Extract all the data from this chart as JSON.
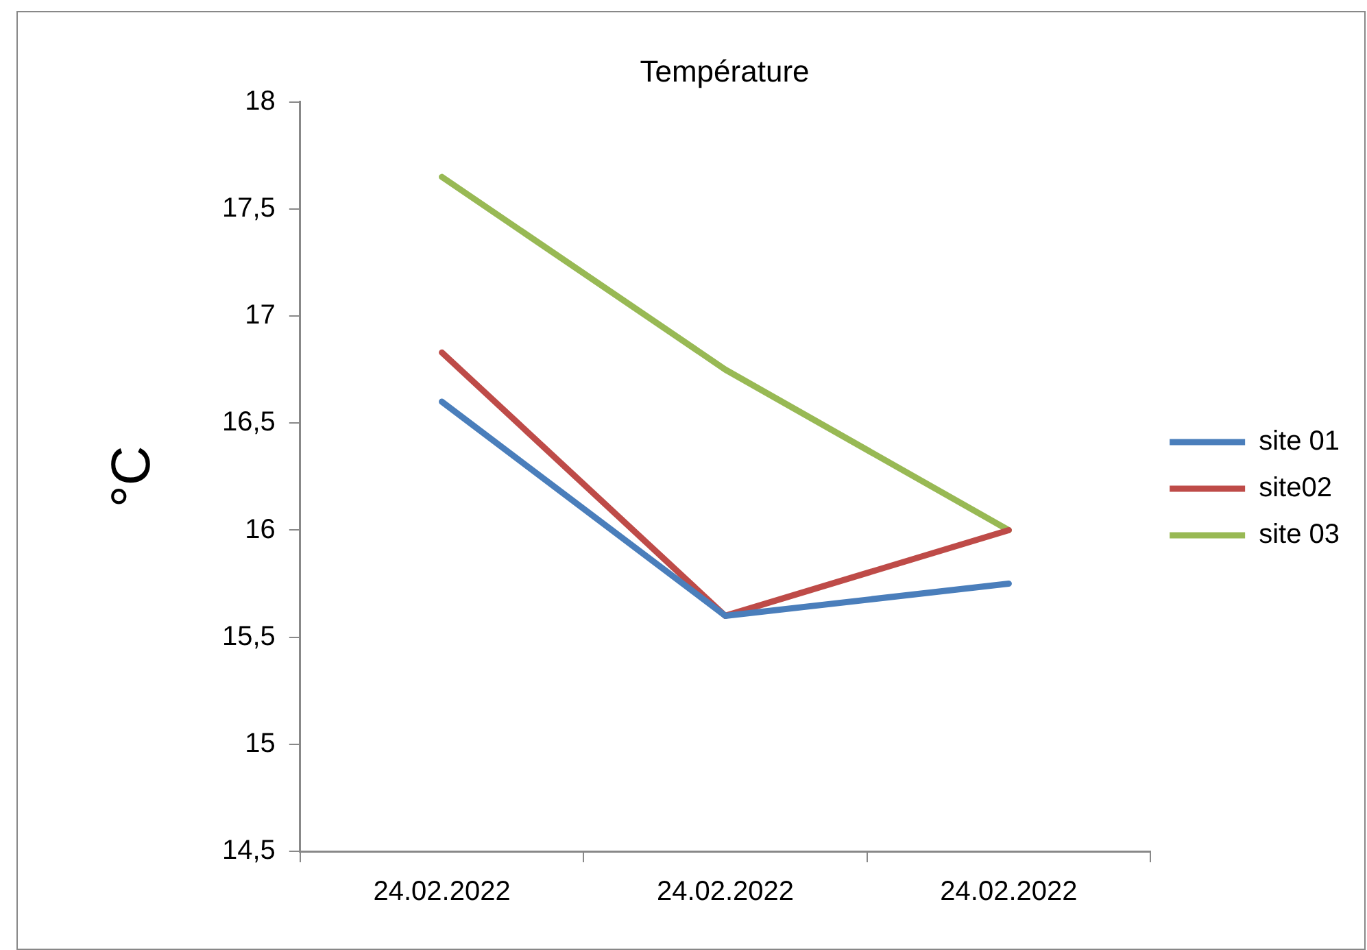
{
  "chart_data": {
    "type": "line",
    "title": "Température",
    "ylabel": "°C",
    "categories": [
      "24.02.2022",
      "24.02.2022",
      "24.02.2022"
    ],
    "series": [
      {
        "name": "site 01",
        "color": "#4a7ebb",
        "values": [
          16.6,
          15.6,
          15.75
        ]
      },
      {
        "name": "site02",
        "color": "#be4b48",
        "values": [
          16.83,
          15.6,
          16.0
        ]
      },
      {
        "name": "site 03",
        "color": "#98b954",
        "values": [
          17.65,
          16.75,
          16.0
        ]
      }
    ],
    "ylim": [
      14.5,
      18
    ],
    "yticks": [
      {
        "value": 14.5,
        "label": "14,5"
      },
      {
        "value": 15,
        "label": "15"
      },
      {
        "value": 15.5,
        "label": "15,5"
      },
      {
        "value": 16,
        "label": "16"
      },
      {
        "value": 16.5,
        "label": "16,5"
      },
      {
        "value": 17,
        "label": "17"
      },
      {
        "value": 17.5,
        "label": "17,5"
      },
      {
        "value": 18,
        "label": "18"
      }
    ],
    "grid": false,
    "legend": "right",
    "marker": "none",
    "line_style": "solid"
  }
}
